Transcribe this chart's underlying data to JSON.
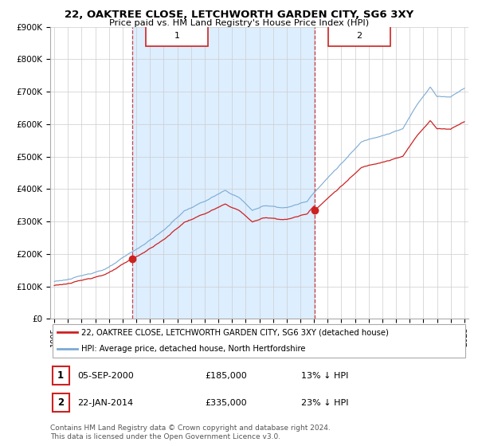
{
  "title": "22, OAKTREE CLOSE, LETCHWORTH GARDEN CITY, SG6 3XY",
  "subtitle": "Price paid vs. HM Land Registry's House Price Index (HPI)",
  "ylim": [
    0,
    900000
  ],
  "yticks": [
    0,
    100000,
    200000,
    300000,
    400000,
    500000,
    600000,
    700000,
    800000,
    900000
  ],
  "ytick_labels": [
    "£0",
    "£100K",
    "£200K",
    "£300K",
    "£400K",
    "£500K",
    "£600K",
    "£700K",
    "£800K",
    "£900K"
  ],
  "hpi_color": "#7aaad4",
  "price_color": "#cc2222",
  "marker1_x": 2000.72,
  "marker1_y": 185000,
  "marker2_x": 2014.06,
  "marker2_y": 335000,
  "vline1_x": 2000.72,
  "vline2_x": 2014.06,
  "shade_color": "#ddeeff",
  "legend_line1": "22, OAKTREE CLOSE, LETCHWORTH GARDEN CITY, SG6 3XY (detached house)",
  "legend_line2": "HPI: Average price, detached house, North Hertfordshire",
  "ann1_date": "05-SEP-2000",
  "ann1_price": "£185,000",
  "ann1_pct": "13% ↓ HPI",
  "ann2_date": "22-JAN-2014",
  "ann2_price": "£335,000",
  "ann2_pct": "23% ↓ HPI",
  "footer": "Contains HM Land Registry data © Crown copyright and database right 2024.\nThis data is licensed under the Open Government Licence v3.0.",
  "background_color": "#ffffff",
  "xlim_left": 1994.7,
  "xlim_right": 2025.3
}
